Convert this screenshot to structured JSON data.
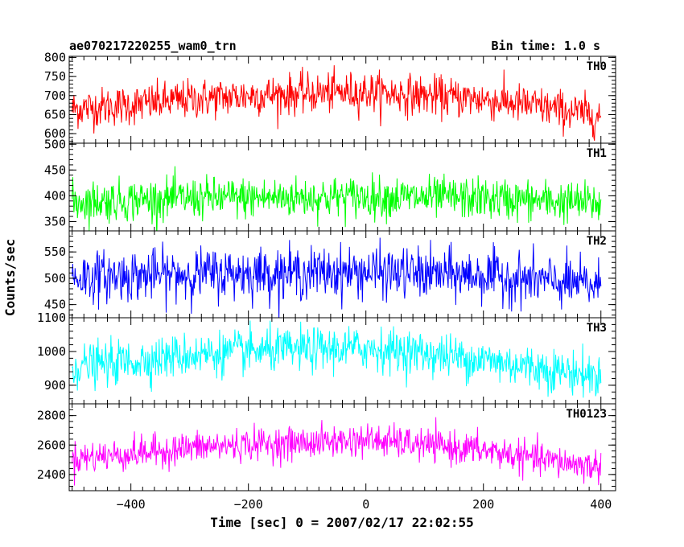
{
  "header": {
    "left_title": "ae070217220255_wam0_trn",
    "right_title": "Bin time: 1.0 s"
  },
  "chart_data": {
    "type": "line",
    "xlabel": "Time [sec] 0 = 2007/02/17 22:02:55",
    "ylabel": "Counts/sec",
    "xlim": [
      -505,
      425
    ],
    "x_ticks": [
      -400,
      -200,
      0,
      200,
      400
    ],
    "x_tick_labels": [
      "−400",
      "−200",
      "0",
      "200",
      "400"
    ],
    "x_range_data": [
      -500,
      400
    ],
    "bin_time": 1.0,
    "panels": [
      {
        "name": "TH0",
        "color": "#ff0000",
        "ylim": [
          575,
          803
        ],
        "yticks": [
          600,
          650,
          700,
          750,
          800
        ],
        "trend": [
          {
            "x": -500,
            "y": 665
          },
          {
            "x": -400,
            "y": 675
          },
          {
            "x": -300,
            "y": 690
          },
          {
            "x": -200,
            "y": 700
          },
          {
            "x": -100,
            "y": 705
          },
          {
            "x": 0,
            "y": 710
          },
          {
            "x": 100,
            "y": 700
          },
          {
            "x": 200,
            "y": 690
          },
          {
            "x": 300,
            "y": 670
          },
          {
            "x": 400,
            "y": 645
          }
        ],
        "noise_sd": 26
      },
      {
        "name": "TH1",
        "color": "#00ff00",
        "ylim": [
          332,
          502
        ],
        "yticks": [
          350,
          400,
          450,
          500
        ],
        "trend": [
          {
            "x": -500,
            "y": 388
          },
          {
            "x": -400,
            "y": 392
          },
          {
            "x": -300,
            "y": 395
          },
          {
            "x": -200,
            "y": 396
          },
          {
            "x": -100,
            "y": 397
          },
          {
            "x": 0,
            "y": 398
          },
          {
            "x": 100,
            "y": 396
          },
          {
            "x": 200,
            "y": 395
          },
          {
            "x": 300,
            "y": 390
          },
          {
            "x": 400,
            "y": 385
          }
        ],
        "noise_sd": 20
      },
      {
        "name": "TH2",
        "color": "#0000ff",
        "ylim": [
          425,
          590
        ],
        "yticks": [
          450,
          500,
          550
        ],
        "trend": [
          {
            "x": -500,
            "y": 502
          },
          {
            "x": -400,
            "y": 505
          },
          {
            "x": -300,
            "y": 508
          },
          {
            "x": -200,
            "y": 510
          },
          {
            "x": -100,
            "y": 510
          },
          {
            "x": 0,
            "y": 512
          },
          {
            "x": 100,
            "y": 508
          },
          {
            "x": 200,
            "y": 505
          },
          {
            "x": 300,
            "y": 495
          },
          {
            "x": 400,
            "y": 485
          }
        ],
        "noise_sd": 24
      },
      {
        "name": "TH3",
        "color": "#00ffff",
        "ylim": [
          845,
          1100
        ],
        "yticks": [
          900,
          1000,
          1100
        ],
        "trend": [
          {
            "x": -500,
            "y": 955
          },
          {
            "x": -400,
            "y": 970
          },
          {
            "x": -300,
            "y": 990
          },
          {
            "x": -200,
            "y": 1000
          },
          {
            "x": -100,
            "y": 1005
          },
          {
            "x": 0,
            "y": 1010
          },
          {
            "x": 100,
            "y": 995
          },
          {
            "x": 200,
            "y": 975
          },
          {
            "x": 300,
            "y": 950
          },
          {
            "x": 400,
            "y": 925
          }
        ],
        "noise_sd": 32
      },
      {
        "name": "TH0123",
        "color": "#ff00ff",
        "ylim": [
          2290,
          2880
        ],
        "yticks": [
          2400,
          2600,
          2800
        ],
        "trend": [
          {
            "x": -500,
            "y": 2510
          },
          {
            "x": -400,
            "y": 2540
          },
          {
            "x": -300,
            "y": 2580
          },
          {
            "x": -200,
            "y": 2605
          },
          {
            "x": -100,
            "y": 2615
          },
          {
            "x": 0,
            "y": 2635
          },
          {
            "x": 100,
            "y": 2600
          },
          {
            "x": 200,
            "y": 2565
          },
          {
            "x": 300,
            "y": 2500
          },
          {
            "x": 400,
            "y": 2450
          }
        ],
        "noise_sd": 55
      }
    ]
  }
}
